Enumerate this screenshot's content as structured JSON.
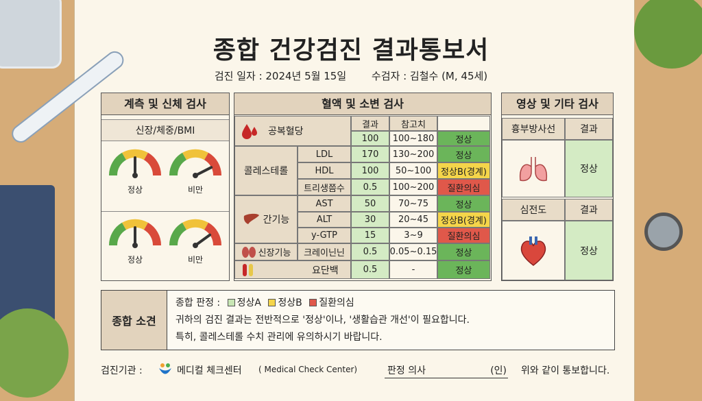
{
  "title": "종합 건강검진 결과통보서",
  "exam_date": "검진 일자 : 2024년 5월 15일",
  "patient": "수검자 : 김철수 (M, 45세)",
  "left_panel": {
    "header": "계측 및 신체 검사",
    "subheader": "신장/체중/BMI",
    "gauges": [
      {
        "label": "정상",
        "level": 0.5
      },
      {
        "label": "비만",
        "level": 0.85
      },
      {
        "label": "정상",
        "level": 0.5
      },
      {
        "label": "비만",
        "level": 0.8
      }
    ]
  },
  "middle_panel": {
    "header": "혈액 및 소변 검사",
    "col_result": "결과",
    "col_ref": "참고치",
    "rows": [
      {
        "group": "공복혈당",
        "item": "",
        "result": "100",
        "ref": "100~180",
        "status": "정상",
        "level": "g"
      },
      {
        "group": "콜레스테롤",
        "item": "LDL",
        "result": "170",
        "ref": "130~200",
        "status": "정상",
        "level": "g"
      },
      {
        "group": "",
        "item": "HDL",
        "result": "100",
        "ref": "50~100",
        "status": "정상B(경계)",
        "level": "y"
      },
      {
        "group": "",
        "item": "트리생쯤수",
        "result": "0.5",
        "ref": "100~200",
        "status": "질환의심",
        "level": "r"
      },
      {
        "group": "간기능",
        "item": "AST",
        "result": "50",
        "ref": "70~75",
        "status": "정상",
        "level": "g"
      },
      {
        "group": "",
        "item": "ALT",
        "result": "30",
        "ref": "20~45",
        "status": "정상B(경계)",
        "level": "y"
      },
      {
        "group": "",
        "item": "y-GTP",
        "result": "15",
        "ref": "3~9",
        "status": "질환의심",
        "level": "r"
      },
      {
        "group": "신장기능",
        "item": "크레이닌닌",
        "result": "0.5",
        "ref": "0.05~0.15",
        "status": "정상",
        "level": "g"
      },
      {
        "group": "",
        "item": "요단백",
        "result": "0.5",
        "ref": "-",
        "status": "정상",
        "level": "g"
      }
    ]
  },
  "right_panel": {
    "header": "영상 및 기타 검사",
    "xray_label": "흉부방사선",
    "xray_col": "결과",
    "xray_result": "정상",
    "ecg_label": "심전도",
    "ecg_col": "결과",
    "ecg_result": "정상"
  },
  "summary": {
    "label": "종합 소견",
    "legend_title": "종합 판정 :",
    "legend": [
      {
        "label": "정상A",
        "color": "#c8e6b4"
      },
      {
        "label": "정상B",
        "color": "#f5d54a"
      },
      {
        "label": "질환의심",
        "color": "#e0584a"
      }
    ],
    "line1": "귀하의 검진 결과는 전반적으로 '정상'이나, '생활습관 개선'이 필요합니다.",
    "line2": "특히, 콜레스테롤 수치 관리에 유의하시기 바랍니다."
  },
  "footer": {
    "institution_label": "검진기관 :",
    "institution_name": "메디컬 체크센터",
    "institution_en": "( Medical Check Center)",
    "doctor_label": "판정 의사",
    "seal": "(인)",
    "closing": "위와 같이 통보합니다."
  }
}
